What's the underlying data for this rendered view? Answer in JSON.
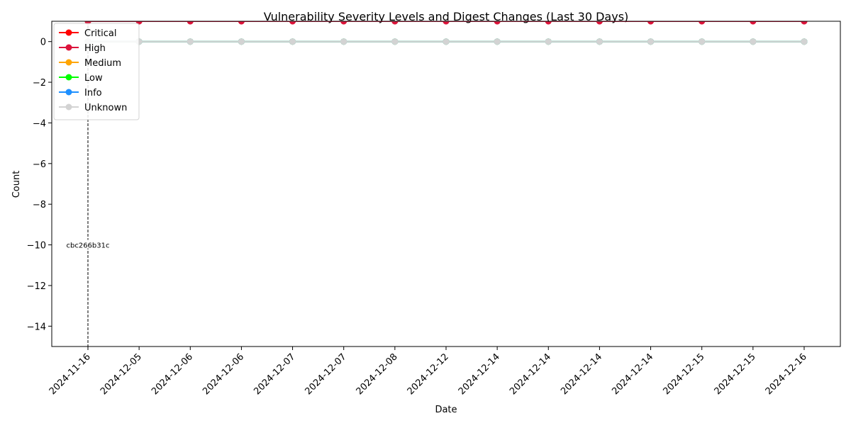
{
  "chart_data": {
    "type": "line",
    "title": "Vulnerability Severity Levels and Digest Changes (Last 30 Days)",
    "xlabel": "Date",
    "ylabel": "Count",
    "categories": [
      "2024-11-16",
      "2024-12-05",
      "2024-12-06",
      "2024-12-06",
      "2024-12-07",
      "2024-12-07",
      "2024-12-08",
      "2024-12-12",
      "2024-12-14",
      "2024-12-14",
      "2024-12-14",
      "2024-12-14",
      "2024-12-15",
      "2024-12-15",
      "2024-12-16"
    ],
    "ylim": [
      -15,
      1
    ],
    "yticks": [
      -14,
      -12,
      -10,
      -8,
      -6,
      -4,
      -2,
      0
    ],
    "grid": false,
    "legend_position": "upper-left",
    "series": [
      {
        "name": "Critical",
        "color": "#ff0000",
        "values": [
          1,
          1,
          1,
          1,
          1,
          1,
          1,
          1,
          1,
          1,
          1,
          1,
          1,
          1,
          1
        ]
      },
      {
        "name": "High",
        "color": "#dc143c",
        "values": [
          1,
          1,
          1,
          1,
          1,
          1,
          1,
          1,
          1,
          1,
          1,
          1,
          1,
          1,
          1
        ]
      },
      {
        "name": "Medium",
        "color": "#ffa500",
        "values": [
          0,
          0,
          0,
          0,
          0,
          0,
          0,
          0,
          0,
          0,
          0,
          0,
          0,
          0,
          0
        ]
      },
      {
        "name": "Low",
        "color": "#00ff00",
        "values": [
          0,
          0,
          0,
          0,
          0,
          0,
          0,
          0,
          0,
          0,
          0,
          0,
          0,
          0,
          0
        ]
      },
      {
        "name": "Info",
        "color": "#1e90ff",
        "values": [
          0,
          0,
          0,
          0,
          0,
          0,
          0,
          0,
          0,
          0,
          0,
          0,
          0,
          0,
          0
        ]
      },
      {
        "name": "Unknown",
        "color": "#d3d3d3",
        "values": [
          0,
          0,
          0,
          0,
          0,
          0,
          0,
          0,
          0,
          0,
          0,
          0,
          0,
          0,
          0
        ]
      }
    ],
    "annotations": [
      {
        "category_index": 0,
        "text": "cbc266b31c",
        "y": -10
      }
    ]
  }
}
